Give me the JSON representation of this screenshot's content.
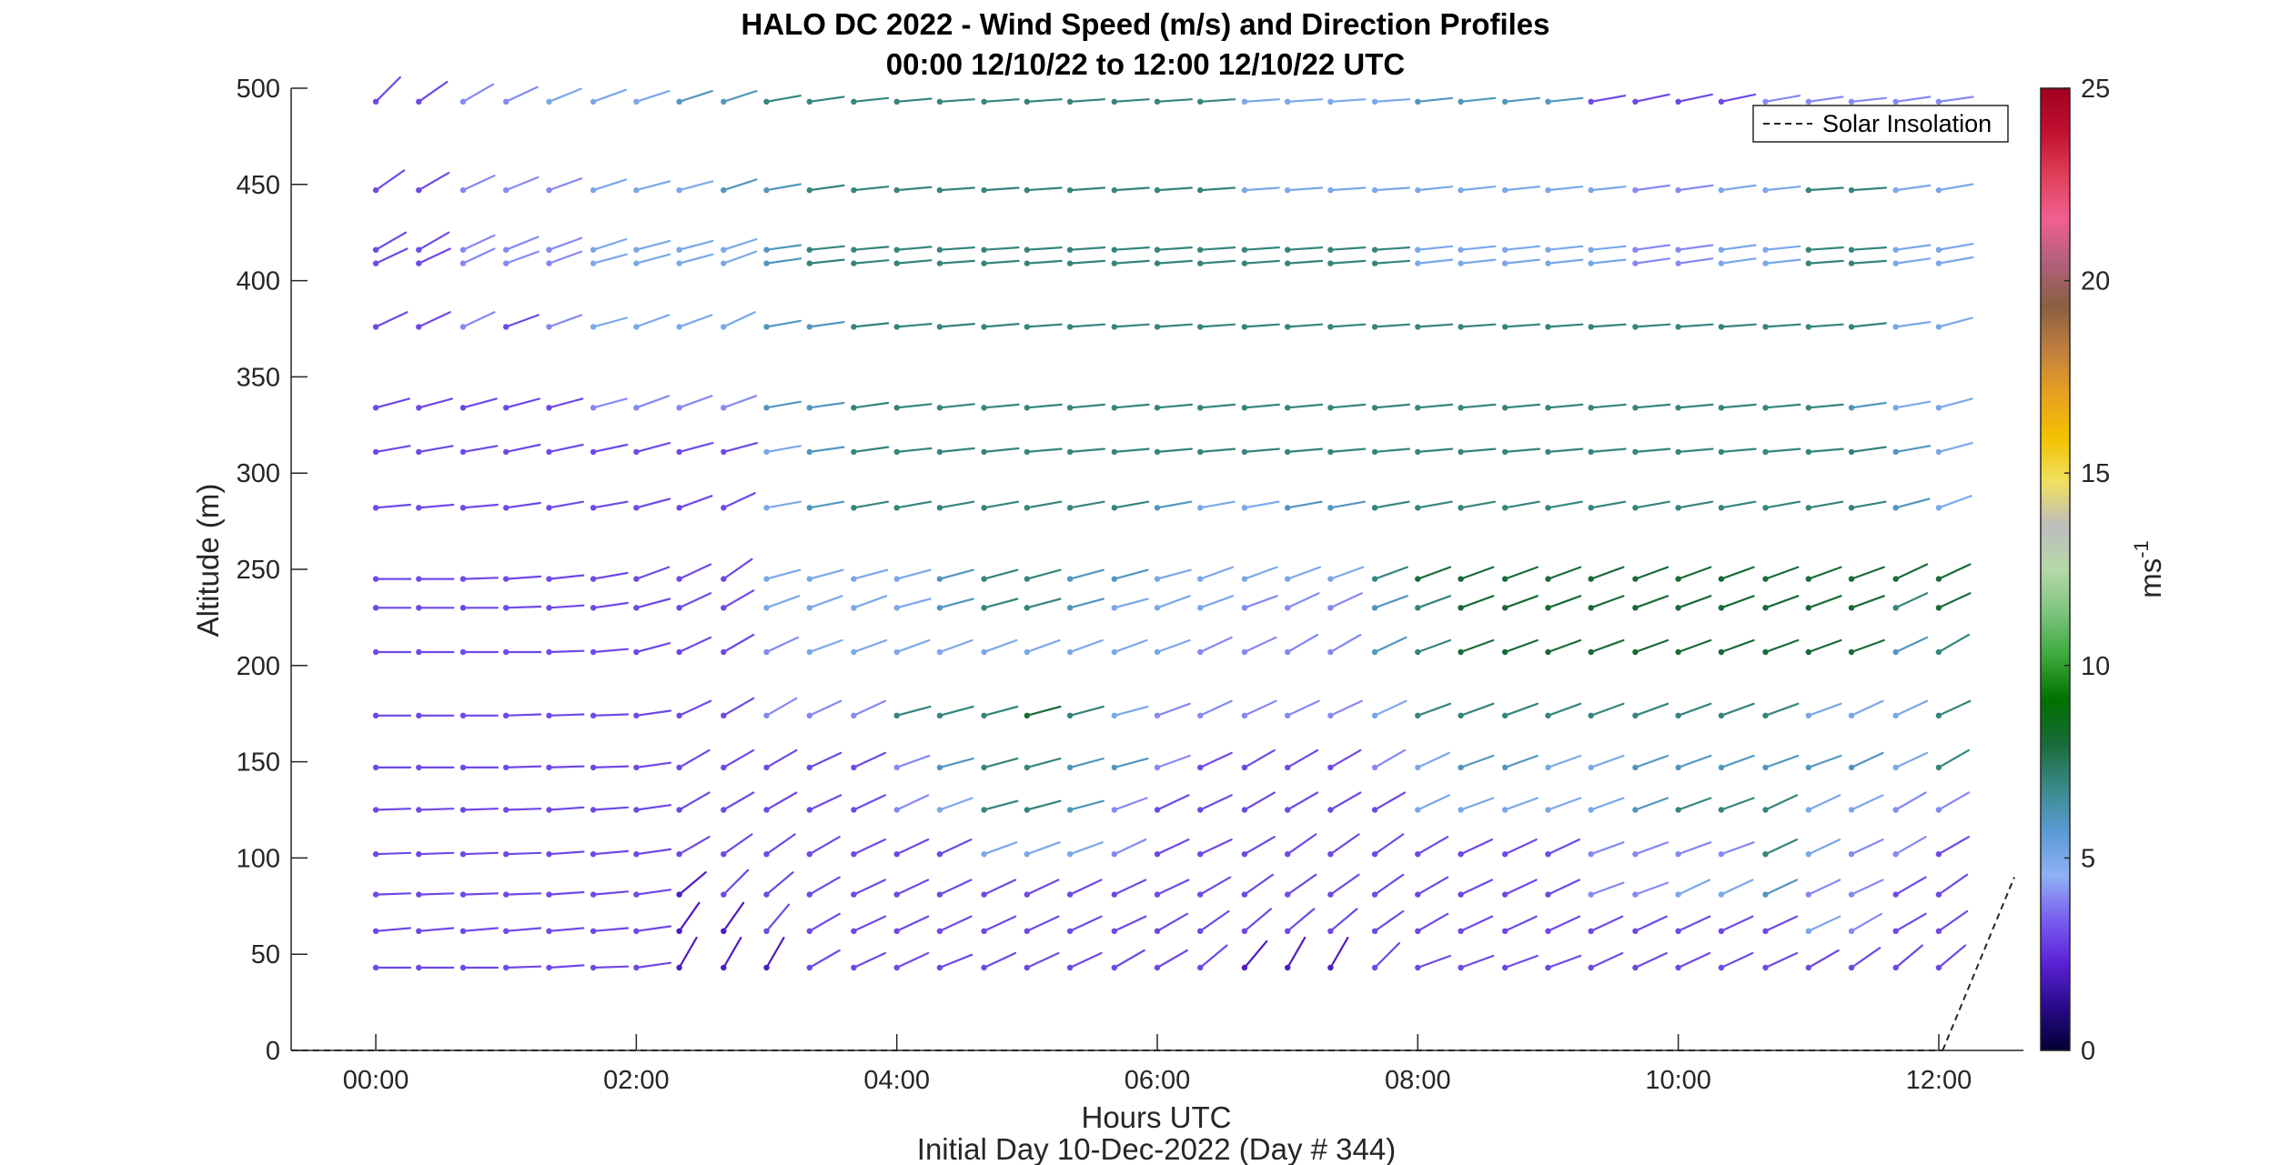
{
  "chart_data": {
    "type": "wind-barb-profile",
    "title": "HALO DC 2022 - Wind Speed (m/s) and Direction Profiles",
    "subtitle": "00:00 12/10/22 to 12:00 12/10/22  UTC",
    "xlabel": "Hours UTC",
    "xlabel2": "Initial Day 10-Dec-2022 (Day # 344)",
    "ylabel": "Altitude (m)",
    "xlim": [
      -0.65,
      12.65
    ],
    "ylim": [
      0,
      500
    ],
    "x_ticks": [
      0,
      2,
      4,
      6,
      8,
      10,
      12
    ],
    "x_tick_labels": [
      "00:00",
      "02:00",
      "04:00",
      "06:00",
      "08:00",
      "10:00",
      "12:00"
    ],
    "y_ticks": [
      0,
      50,
      100,
      150,
      200,
      250,
      300,
      350,
      400,
      450,
      500
    ],
    "y_tick_labels": [
      "0",
      "50",
      "100",
      "150",
      "200",
      "250",
      "300",
      "350",
      "400",
      "450",
      "500"
    ],
    "colorbar": {
      "label": "ms",
      "label_superscript": "-1",
      "range": [
        0,
        25
      ],
      "ticks": [
        0,
        5,
        10,
        15,
        20,
        25
      ],
      "tick_labels": [
        "0",
        "5",
        "10",
        "15",
        "20",
        "25"
      ],
      "colors": [
        "#000033",
        "#2a0a8a",
        "#5a22d6",
        "#7a5ff0",
        "#8fb0f5",
        "#5b9bd5",
        "#3a8a8a",
        "#1a6b3a",
        "#007000",
        "#3aa83a",
        "#7dc47d",
        "#b6d8a8",
        "#bdbdbd",
        "#f0e060",
        "#f2c200",
        "#e8a020",
        "#c08040",
        "#8a6040",
        "#b0607a",
        "#f06090",
        "#e0405a",
        "#c01030",
        "#a00020"
      ]
    },
    "legend": {
      "entries": [
        "Solar Insolation"
      ],
      "placement": "top-right"
    },
    "solar_insolation": {
      "x": [
        12.03,
        12.58
      ],
      "y": [
        0,
        90
      ]
    },
    "altitudes": [
      43,
      62,
      81,
      102,
      125,
      147,
      174,
      207,
      230,
      245,
      282,
      311,
      334,
      376,
      409,
      416,
      447,
      493
    ],
    "times": [
      0.0,
      0.33,
      0.67,
      1.0,
      1.33,
      1.67,
      2.0,
      2.33,
      2.67,
      3.0,
      3.33,
      3.67,
      4.0,
      4.33,
      4.67,
      5.0,
      5.33,
      5.67,
      6.0,
      6.33,
      6.67,
      7.0,
      7.33,
      7.67,
      8.0,
      8.33,
      8.67,
      9.0,
      9.33,
      9.67,
      10.0,
      10.33,
      10.67,
      11.0,
      11.33,
      11.67,
      12.0
    ],
    "wind_speed_ms": [
      [
        3,
        3,
        3,
        3,
        3,
        3,
        3,
        2,
        2,
        2,
        3,
        3,
        3,
        3,
        3,
        3,
        3,
        3,
        3,
        3,
        2,
        2,
        2,
        3,
        3,
        3,
        3,
        3,
        3,
        3,
        3,
        3,
        3,
        3,
        3,
        3,
        3
      ],
      [
        3,
        3,
        3,
        3,
        3,
        3,
        3,
        2,
        2,
        3,
        3,
        3,
        3,
        3,
        3,
        3,
        3,
        3,
        3,
        3,
        3,
        3,
        3,
        3,
        3,
        3,
        3,
        3,
        3,
        3,
        3,
        3,
        3,
        5,
        4,
        3,
        3
      ],
      [
        3,
        3,
        3,
        3,
        3,
        3,
        3,
        2,
        3,
        3,
        3,
        3,
        3,
        3,
        3,
        3,
        3,
        3,
        3,
        3,
        3,
        3,
        3,
        3,
        3,
        3,
        3,
        3,
        4,
        4,
        5,
        5,
        6,
        4,
        4,
        3,
        3
      ],
      [
        3,
        3,
        3,
        3,
        3,
        3,
        3,
        3,
        3,
        3,
        3,
        3,
        3,
        3,
        5,
        5,
        5,
        4,
        3,
        3,
        3,
        3,
        3,
        3,
        3,
        3,
        3,
        3,
        4,
        4,
        4,
        4,
        7,
        5,
        4,
        4,
        3
      ],
      [
        3,
        3,
        3,
        3,
        3,
        3,
        3,
        3,
        3,
        3,
        3,
        3,
        4,
        5,
        7,
        7,
        6,
        4,
        3,
        3,
        3,
        3,
        3,
        3,
        5,
        5,
        5,
        5,
        5,
        6,
        7,
        7,
        7,
        5,
        5,
        4,
        4
      ],
      [
        3,
        3,
        3,
        3,
        3,
        3,
        3,
        3,
        3,
        3,
        3,
        3,
        4,
        6,
        7,
        7,
        6,
        6,
        4,
        3,
        3,
        3,
        3,
        4,
        5,
        6,
        6,
        5,
        5,
        6,
        6,
        6,
        6,
        6,
        6,
        5,
        7
      ],
      [
        3,
        3,
        3,
        3,
        3,
        3,
        3,
        3,
        3,
        4,
        4,
        4,
        7,
        7,
        7,
        8,
        7,
        5,
        4,
        4,
        4,
        4,
        4,
        5,
        7,
        7,
        7,
        7,
        7,
        7,
        7,
        7,
        7,
        5,
        5,
        5,
        7
      ],
      [
        3,
        3,
        3,
        3,
        3,
        3,
        3,
        3,
        3,
        4,
        5,
        5,
        5,
        5,
        5,
        5,
        5,
        5,
        5,
        4,
        4,
        4,
        4,
        6,
        7,
        8,
        8,
        8,
        8,
        8,
        8,
        8,
        8,
        8,
        8,
        6,
        7
      ],
      [
        3,
        3,
        3,
        3,
        3,
        3,
        3,
        3,
        3,
        5,
        5,
        5,
        5,
        6,
        7,
        7,
        6,
        5,
        5,
        5,
        4,
        4,
        4,
        6,
        7,
        8,
        8,
        8,
        8,
        8,
        8,
        8,
        8,
        8,
        8,
        7,
        8
      ],
      [
        3,
        3,
        3,
        3,
        3,
        3,
        3,
        3,
        3,
        5,
        5,
        5,
        5,
        6,
        7,
        7,
        6,
        6,
        5,
        5,
        5,
        5,
        5,
        7,
        8,
        8,
        8,
        8,
        8,
        8,
        8,
        8,
        8,
        8,
        8,
        8,
        8
      ],
      [
        3,
        3,
        3,
        3,
        3,
        3,
        3,
        3,
        3,
        5,
        6,
        7,
        7,
        7,
        7,
        7,
        7,
        7,
        6,
        5,
        5,
        6,
        6,
        7,
        7,
        7,
        7,
        7,
        7,
        7,
        7,
        7,
        7,
        7,
        7,
        6,
        5
      ],
      [
        3,
        3,
        3,
        3,
        3,
        3,
        3,
        3,
        3,
        5,
        6,
        7,
        7,
        7,
        7,
        7,
        7,
        7,
        7,
        7,
        7,
        7,
        7,
        7,
        7,
        7,
        7,
        7,
        7,
        7,
        7,
        7,
        7,
        7,
        7,
        6,
        5
      ],
      [
        3,
        3,
        3,
        3,
        3,
        4,
        4,
        4,
        4,
        6,
        6,
        7,
        7,
        7,
        7,
        7,
        7,
        7,
        7,
        7,
        7,
        7,
        7,
        7,
        7,
        7,
        7,
        7,
        7,
        7,
        7,
        7,
        7,
        7,
        6,
        5,
        5
      ],
      [
        3,
        3,
        4,
        3,
        4,
        5,
        5,
        5,
        5,
        6,
        6,
        7,
        7,
        7,
        7,
        7,
        7,
        7,
        7,
        7,
        7,
        7,
        7,
        7,
        7,
        7,
        7,
        7,
        7,
        7,
        7,
        7,
        7,
        7,
        7,
        5,
        5
      ],
      [
        3,
        3,
        4,
        4,
        4,
        5,
        5,
        5,
        5,
        6,
        7,
        7,
        7,
        7,
        7,
        7,
        7,
        7,
        7,
        7,
        7,
        7,
        7,
        7,
        5,
        5,
        5,
        5,
        5,
        4,
        4,
        5,
        5,
        7,
        7,
        5,
        5
      ],
      [
        3,
        3,
        4,
        4,
        4,
        5,
        5,
        5,
        5,
        6,
        7,
        7,
        7,
        7,
        7,
        7,
        7,
        7,
        7,
        7,
        7,
        7,
        7,
        7,
        5,
        5,
        5,
        5,
        5,
        4,
        4,
        5,
        5,
        7,
        7,
        5,
        5
      ],
      [
        3,
        3,
        4,
        4,
        4,
        5,
        5,
        5,
        6,
        6,
        7,
        7,
        7,
        7,
        7,
        7,
        7,
        7,
        7,
        7,
        5,
        5,
        5,
        5,
        5,
        5,
        5,
        5,
        5,
        4,
        4,
        5,
        5,
        7,
        7,
        5,
        5
      ],
      [
        3,
        3,
        4,
        4,
        5,
        5,
        5,
        6,
        6,
        7,
        7,
        7,
        7,
        7,
        7,
        7,
        7,
        7,
        7,
        7,
        5,
        5,
        5,
        5,
        6,
        6,
        6,
        6,
        3,
        3,
        3,
        3,
        4,
        4,
        4,
        4,
        4
      ]
    ],
    "wind_direction_deg": [
      [
        270,
        270,
        270,
        268,
        266,
        268,
        262,
        210,
        210,
        210,
        240,
        245,
        245,
        248,
        245,
        245,
        245,
        240,
        240,
        230,
        220,
        210,
        210,
        225,
        250,
        250,
        250,
        250,
        245,
        245,
        245,
        245,
        245,
        240,
        235,
        230,
        230
      ],
      [
        265,
        265,
        265,
        265,
        265,
        265,
        262,
        215,
        215,
        220,
        240,
        245,
        245,
        245,
        245,
        245,
        245,
        245,
        240,
        235,
        230,
        230,
        230,
        235,
        240,
        245,
        245,
        245,
        245,
        245,
        245,
        245,
        245,
        245,
        240,
        240,
        235
      ],
      [
        268,
        268,
        268,
        268,
        266,
        265,
        262,
        230,
        225,
        230,
        240,
        245,
        245,
        245,
        245,
        245,
        245,
        245,
        245,
        240,
        235,
        235,
        235,
        235,
        240,
        245,
        245,
        245,
        250,
        250,
        245,
        245,
        245,
        245,
        245,
        240,
        235
      ],
      [
        268,
        268,
        268,
        268,
        266,
        265,
        262,
        240,
        235,
        235,
        240,
        245,
        245,
        245,
        250,
        250,
        250,
        245,
        245,
        245,
        240,
        235,
        235,
        235,
        240,
        245,
        245,
        245,
        250,
        250,
        250,
        250,
        245,
        245,
        245,
        240,
        240
      ],
      [
        268,
        268,
        268,
        268,
        266,
        266,
        262,
        240,
        240,
        240,
        245,
        245,
        245,
        250,
        255,
        255,
        255,
        250,
        245,
        245,
        240,
        240,
        240,
        240,
        245,
        250,
        250,
        250,
        250,
        250,
        250,
        250,
        245,
        245,
        245,
        240,
        240
      ],
      [
        270,
        270,
        270,
        268,
        268,
        268,
        262,
        240,
        240,
        240,
        245,
        245,
        250,
        255,
        255,
        255,
        255,
        255,
        250,
        245,
        240,
        240,
        240,
        240,
        245,
        250,
        250,
        250,
        250,
        250,
        250,
        250,
        250,
        250,
        245,
        245,
        240
      ],
      [
        270,
        270,
        270,
        268,
        268,
        268,
        262,
        245,
        240,
        240,
        245,
        245,
        255,
        255,
        255,
        255,
        255,
        255,
        250,
        245,
        245,
        245,
        245,
        245,
        250,
        250,
        250,
        250,
        250,
        250,
        250,
        250,
        250,
        250,
        245,
        245,
        245
      ],
      [
        270,
        270,
        270,
        270,
        268,
        265,
        255,
        245,
        240,
        245,
        250,
        250,
        250,
        250,
        250,
        250,
        250,
        250,
        250,
        245,
        245,
        240,
        240,
        245,
        250,
        250,
        250,
        250,
        250,
        250,
        250,
        250,
        250,
        250,
        250,
        245,
        240
      ],
      [
        270,
        270,
        270,
        268,
        266,
        262,
        255,
        245,
        240,
        250,
        250,
        250,
        255,
        255,
        255,
        255,
        255,
        255,
        250,
        250,
        250,
        245,
        245,
        250,
        250,
        250,
        250,
        250,
        250,
        250,
        250,
        250,
        250,
        250,
        250,
        245,
        245
      ],
      [
        270,
        270,
        268,
        266,
        264,
        260,
        250,
        245,
        235,
        255,
        255,
        255,
        255,
        255,
        255,
        255,
        255,
        255,
        255,
        250,
        250,
        250,
        250,
        250,
        250,
        250,
        250,
        250,
        250,
        250,
        250,
        250,
        250,
        250,
        250,
        245,
        245
      ],
      [
        265,
        265,
        265,
        262,
        260,
        260,
        255,
        250,
        245,
        260,
        260,
        260,
        260,
        260,
        260,
        260,
        260,
        260,
        260,
        260,
        260,
        260,
        260,
        260,
        260,
        260,
        260,
        260,
        260,
        260,
        260,
        260,
        260,
        260,
        260,
        255,
        250
      ],
      [
        260,
        260,
        260,
        258,
        258,
        258,
        255,
        255,
        255,
        260,
        262,
        262,
        264,
        264,
        264,
        265,
        265,
        265,
        265,
        265,
        265,
        265,
        265,
        265,
        265,
        265,
        265,
        265,
        265,
        265,
        265,
        265,
        265,
        265,
        262,
        260,
        255
      ],
      [
        255,
        255,
        255,
        255,
        255,
        255,
        250,
        250,
        250,
        260,
        262,
        262,
        264,
        264,
        265,
        265,
        265,
        265,
        265,
        265,
        265,
        265,
        265,
        265,
        265,
        265,
        265,
        265,
        265,
        265,
        265,
        265,
        265,
        265,
        262,
        260,
        255
      ],
      [
        245,
        245,
        245,
        250,
        250,
        255,
        250,
        250,
        245,
        260,
        262,
        264,
        265,
        265,
        265,
        266,
        266,
        266,
        266,
        266,
        266,
        266,
        266,
        266,
        266,
        266,
        266,
        266,
        266,
        266,
        266,
        266,
        266,
        266,
        264,
        262,
        255
      ],
      [
        245,
        245,
        245,
        250,
        250,
        255,
        255,
        255,
        250,
        262,
        264,
        265,
        265,
        266,
        266,
        266,
        266,
        266,
        266,
        266,
        266,
        266,
        266,
        266,
        264,
        264,
        264,
        264,
        264,
        262,
        262,
        262,
        264,
        266,
        266,
        262,
        260
      ],
      [
        240,
        240,
        245,
        248,
        250,
        252,
        255,
        255,
        252,
        262,
        264,
        265,
        265,
        266,
        266,
        266,
        266,
        266,
        266,
        266,
        266,
        266,
        266,
        266,
        264,
        264,
        264,
        264,
        264,
        262,
        262,
        262,
        264,
        266,
        266,
        262,
        260
      ],
      [
        235,
        240,
        245,
        248,
        250,
        252,
        255,
        255,
        252,
        260,
        262,
        264,
        265,
        266,
        266,
        266,
        266,
        266,
        266,
        266,
        266,
        266,
        266,
        266,
        264,
        264,
        264,
        264,
        264,
        262,
        262,
        262,
        264,
        266,
        266,
        262,
        260
      ],
      [
        225,
        235,
        240,
        245,
        248,
        250,
        252,
        252,
        252,
        260,
        262,
        264,
        265,
        266,
        266,
        266,
        266,
        266,
        266,
        266,
        266,
        266,
        266,
        266,
        264,
        264,
        264,
        264,
        260,
        258,
        258,
        258,
        260,
        262,
        264,
        262,
        262
      ]
    ]
  }
}
